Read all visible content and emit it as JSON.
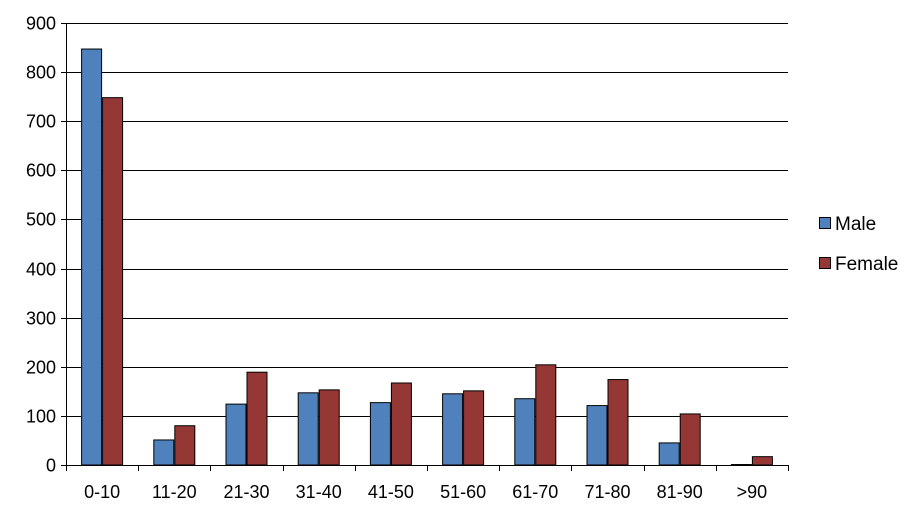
{
  "chart_data": {
    "type": "bar",
    "title": "",
    "xlabel": "",
    "ylabel": "",
    "ylim": [
      0,
      900
    ],
    "yticks": [
      0,
      100,
      200,
      300,
      400,
      500,
      600,
      700,
      800,
      900
    ],
    "grid": true,
    "legend_position": "right",
    "categories": [
      "0-10",
      "11-20",
      "21-30",
      "31-40",
      "41-50",
      "51-60",
      "61-70",
      "71-80",
      "81-90",
      ">90"
    ],
    "series": [
      {
        "name": "Male",
        "color": "#4F81BD",
        "values": [
          848,
          52,
          125,
          148,
          128,
          146,
          136,
          122,
          46,
          2
        ]
      },
      {
        "name": "Female",
        "color": "#953735",
        "values": [
          749,
          81,
          190,
          154,
          168,
          152,
          205,
          175,
          105,
          18
        ]
      }
    ]
  }
}
